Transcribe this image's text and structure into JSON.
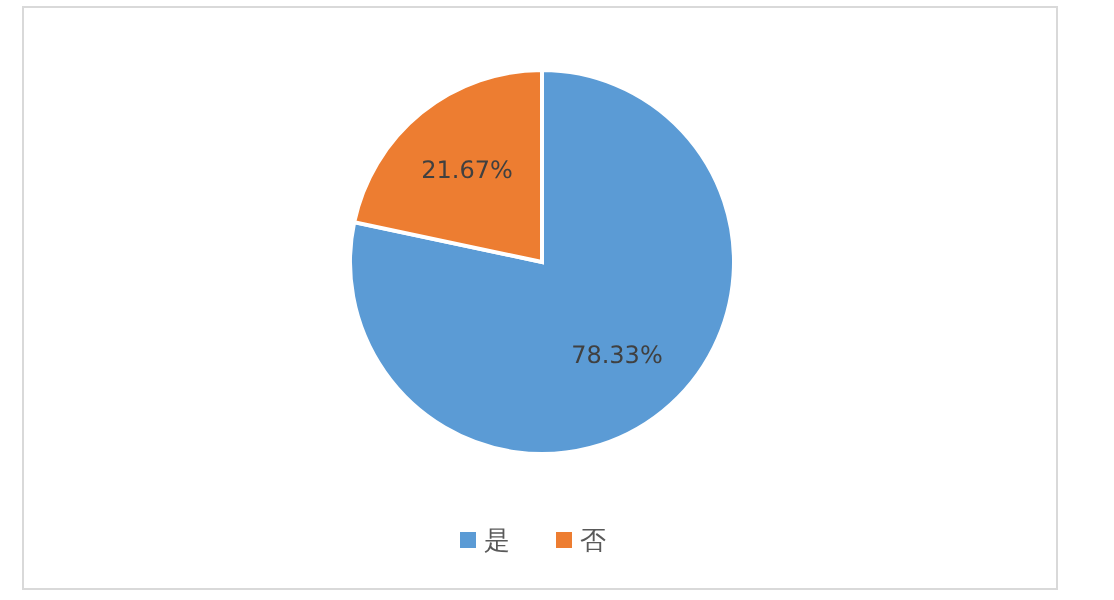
{
  "chart_data": {
    "type": "pie",
    "categories": [
      "是",
      "否"
    ],
    "values": [
      78.33,
      21.67
    ],
    "colors": [
      "#5b9bd5",
      "#ed7d31"
    ],
    "value_labels": [
      "78.33%",
      "21.67%"
    ],
    "legend": "bottom"
  }
}
